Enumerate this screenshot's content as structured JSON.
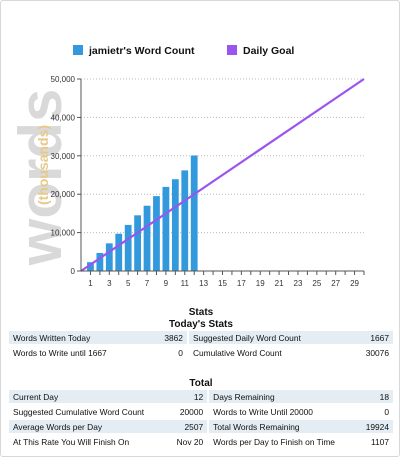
{
  "chart_data": {
    "type": "bar",
    "legend": [
      {
        "name": "jamietr's Word Count",
        "color": "#3399dd",
        "marker": "square"
      },
      {
        "name": "Daily Goal",
        "color": "#9955ee",
        "marker": "square"
      }
    ],
    "legend_position": "top",
    "watermark": "words",
    "watermark_sub": "(thousands)",
    "ylim": [
      0,
      50000
    ],
    "y_ticks": [
      "0",
      "10,000",
      "20,000",
      "30,000",
      "40,000",
      "50,000"
    ],
    "xlim": [
      0,
      30
    ],
    "x_ticks": [
      "1",
      "3",
      "5",
      "7",
      "9",
      "11",
      "13",
      "15",
      "17",
      "19",
      "21",
      "23",
      "25",
      "27",
      "29"
    ],
    "grid": "horizontal dotted",
    "series": [
      {
        "name": "jamietr's Word Count",
        "type": "bar",
        "color": "#3399dd",
        "x": [
          1,
          2,
          3,
          4,
          5,
          6,
          7,
          8,
          9,
          10,
          11,
          12
        ],
        "values": [
          2300,
          4700,
          7200,
          9700,
          12000,
          14500,
          17000,
          19500,
          21900,
          23900,
          26200,
          30076
        ]
      },
      {
        "name": "Daily Goal",
        "type": "line",
        "color": "#9955ee",
        "x": [
          0,
          30
        ],
        "values": [
          0,
          50000
        ]
      }
    ]
  },
  "stats": {
    "title": "Stats",
    "today_title": "Today's Stats",
    "today_rows": [
      {
        "l1": "Words Written Today",
        "v1": "3862",
        "l2": "Suggested Daily Word Count",
        "v2": "1667"
      },
      {
        "l1": "Words to Write until 1667",
        "v1": "0",
        "l2": "Cumulative Word Count",
        "v2": "30076"
      }
    ],
    "total_title": "Total",
    "total_rows": [
      {
        "l1": "Current Day",
        "v1": "12",
        "l2": "Days Remaining",
        "v2": "18"
      },
      {
        "l1": "Suggested Cumulative Word Count",
        "v1": "20000",
        "l2": "Words to Write Until 20000",
        "v2": "0"
      },
      {
        "l1": "Average Words per Day",
        "v1": "2507",
        "l2": "Total Words Remaining",
        "v2": "19924"
      },
      {
        "l1": "At This Rate You Will Finish On",
        "v1": "Nov 20",
        "l2": "Words per Day to Finish on Time",
        "v2": "1107"
      }
    ]
  }
}
